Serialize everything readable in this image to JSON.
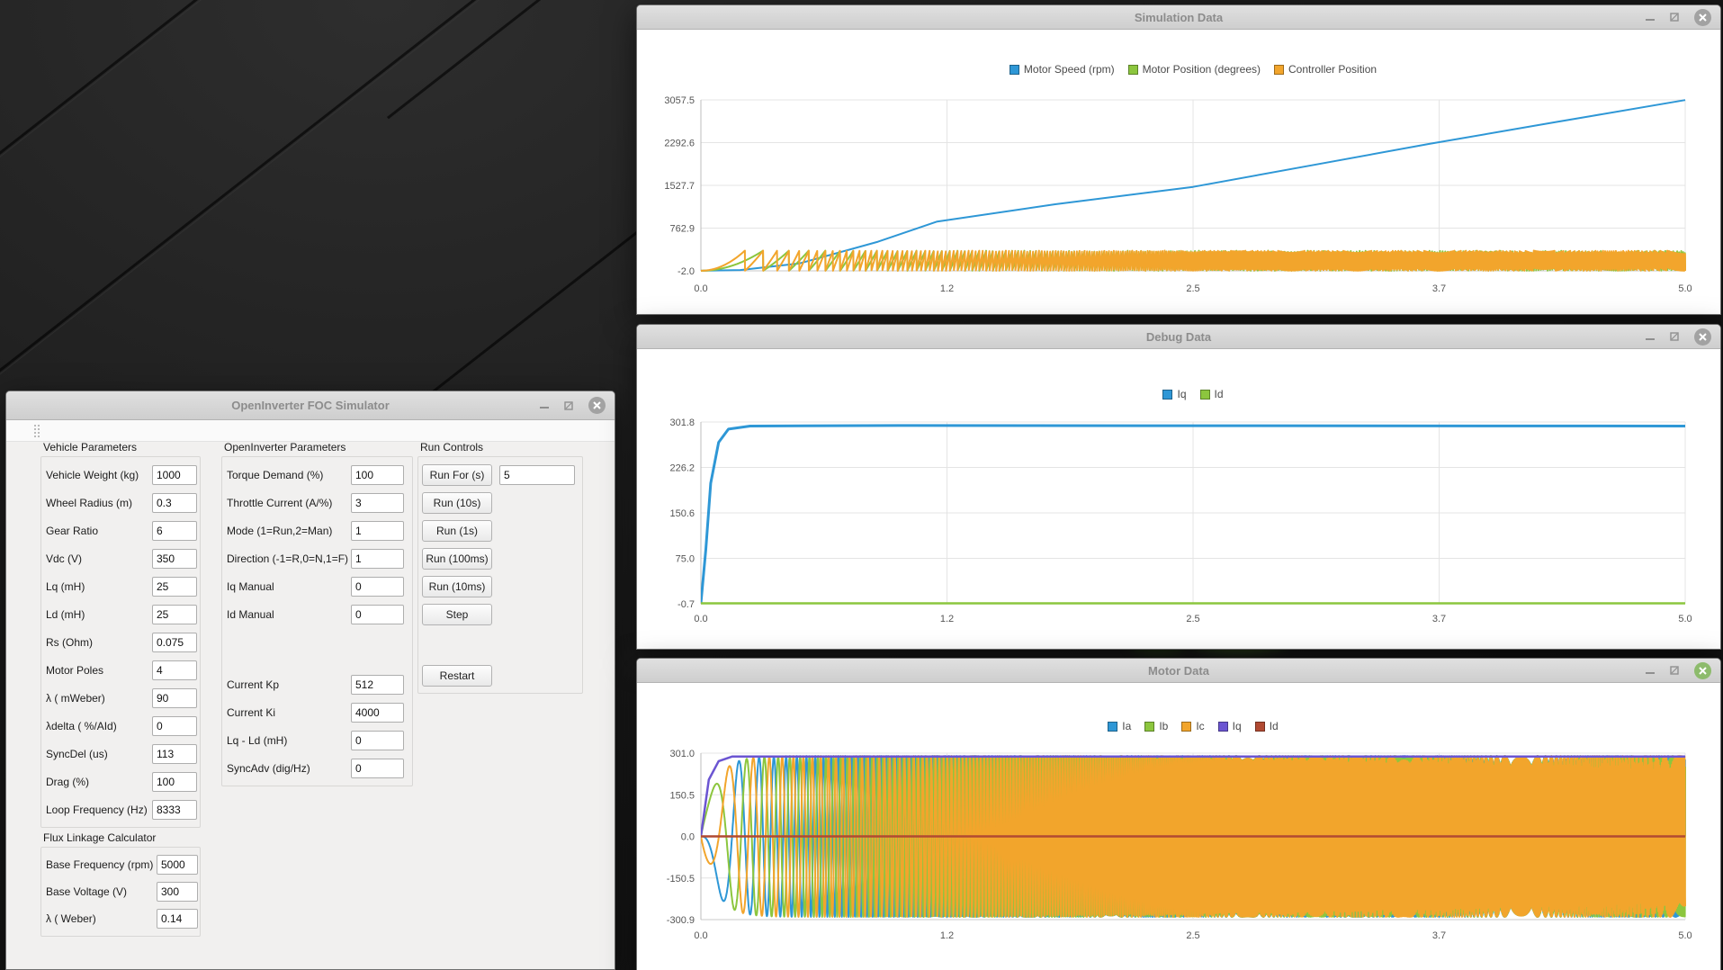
{
  "desktop": {
    "background": "#1d1d1d"
  },
  "simulator": {
    "title": "OpenInverter FOC Simulator",
    "vehicle": {
      "header": "Vehicle Parameters",
      "fields": [
        {
          "label": "Vehicle Weight (kg)",
          "value": "1000"
        },
        {
          "label": "Wheel Radius (m)",
          "value": "0.3"
        },
        {
          "label": "Gear Ratio",
          "value": "6"
        },
        {
          "label": "Vdc (V)",
          "value": "350"
        },
        {
          "label": "Lq (mH)",
          "value": "25"
        },
        {
          "label": "Ld (mH)",
          "value": "25"
        },
        {
          "label": "Rs (Ohm)",
          "value": "0.075"
        },
        {
          "label": "Motor Poles",
          "value": "4"
        },
        {
          "label": "λ ( mWeber)",
          "value": "90"
        },
        {
          "label": "λdelta ( %/AId)",
          "value": "0"
        },
        {
          "label": "SyncDel (us)",
          "value": "113"
        },
        {
          "label": "Drag (%)",
          "value": "100"
        },
        {
          "label": "Loop Frequency (Hz)",
          "value": "8333"
        }
      ],
      "subheader": "Flux Linkage Calculator",
      "flux_fields": [
        {
          "label": "Base Frequency (rpm)",
          "value": "5000"
        },
        {
          "label": "Base Voltage (V)",
          "value": "300"
        },
        {
          "label": "λ ( Weber)",
          "value": "0.14"
        }
      ]
    },
    "openinverter": {
      "header": "OpenInverter Parameters",
      "fields": [
        {
          "label": "Torque Demand (%)",
          "value": "100"
        },
        {
          "label": "Throttle Current (A/%)",
          "value": "3"
        },
        {
          "label": "Mode (1=Run,2=Man)",
          "value": "1"
        },
        {
          "label": "Direction (-1=R,0=N,1=F)",
          "value": "1"
        },
        {
          "label": "Iq Manual",
          "value": "0"
        },
        {
          "label": "Id Manual",
          "value": "0"
        }
      ],
      "fields2": [
        {
          "label": "Current Kp",
          "value": "512"
        },
        {
          "label": "Current Ki",
          "value": "4000"
        },
        {
          "label": "Lq - Ld (mH)",
          "value": "0"
        },
        {
          "label": "SyncAdv (dig/Hz)",
          "value": "0"
        }
      ]
    },
    "run_controls": {
      "header": "Run Controls",
      "run_for_label": "Run For (s)",
      "run_for_value": "5",
      "buttons": [
        "Run (10s)",
        "Run (1s)",
        "Run (100ms)",
        "Run (10ms)",
        "Step"
      ],
      "restart_label": "Restart"
    }
  },
  "chart_data": [
    {
      "window_title": "Simulation Data",
      "type": "line",
      "x_range": [
        0.0,
        5.0
      ],
      "x_ticks": [
        "0.0",
        "1.2",
        "2.5",
        "3.7",
        "5.0"
      ],
      "y_range": [
        -2.0,
        3057.5
      ],
      "y_ticks": [
        "3057.5",
        "2292.6",
        "1527.7",
        "762.9",
        "-2.0"
      ],
      "grid": true,
      "legend_position": "top-center",
      "legend": [
        {
          "label": "Motor Speed (rpm)",
          "color": "#2e97d6"
        },
        {
          "label": "Motor Position (degrees)",
          "color": "#8cc63e"
        },
        {
          "label": "Controller Position",
          "color": "#f2a52c"
        }
      ],
      "series": [
        {
          "name": "Motor Speed (rpm)",
          "color": "#2e97d6",
          "kind": "points",
          "width": 2,
          "points": [
            [
              0,
              0
            ],
            [
              0.2,
              12
            ],
            [
              0.5,
              130
            ],
            [
              0.9,
              520
            ],
            [
              1.2,
              880
            ],
            [
              1.8,
              1190
            ],
            [
              2.5,
              1500
            ],
            [
              3.1,
              1885
            ],
            [
              3.7,
              2270
            ],
            [
              4.35,
              2665
            ],
            [
              5.0,
              3055
            ]
          ]
        },
        {
          "name": "Motor Position (degrees)",
          "color": "#8cc63e",
          "kind": "sawtooth",
          "width": 2,
          "amplitude": 360,
          "cycles_scale": 10,
          "samples": 4200
        },
        {
          "name": "Controller Position",
          "color": "#f2a52c",
          "kind": "sawtooth",
          "width": 2,
          "amplitude": 360,
          "cycles_scale": 20,
          "samples": 6000
        }
      ]
    },
    {
      "window_title": "Debug Data",
      "type": "line",
      "x_range": [
        0.0,
        5.0
      ],
      "x_ticks": [
        "0.0",
        "1.2",
        "2.5",
        "3.7",
        "5.0"
      ],
      "y_range": [
        -0.7,
        301.8
      ],
      "y_ticks": [
        "301.8",
        "226.2",
        "150.6",
        "75.0",
        "-0.7"
      ],
      "grid": true,
      "legend_position": "top-center",
      "legend": [
        {
          "label": "Iq",
          "color": "#2e97d6"
        },
        {
          "label": "Id",
          "color": "#8cc63e"
        }
      ],
      "series": [
        {
          "name": "Iq",
          "color": "#2e97d6",
          "kind": "points",
          "width": 3,
          "points": [
            [
              0,
              0
            ],
            [
              0.025,
              90
            ],
            [
              0.05,
              200
            ],
            [
              0.09,
              268
            ],
            [
              0.14,
              290
            ],
            [
              0.25,
              295
            ],
            [
              1.0,
              296
            ],
            [
              5.0,
              295
            ]
          ]
        },
        {
          "name": "Id",
          "color": "#8cc63e",
          "kind": "points",
          "width": 2.5,
          "points": [
            [
              0,
              0
            ],
            [
              5,
              0
            ]
          ]
        }
      ]
    },
    {
      "window_title": "Motor Data",
      "type": "line",
      "x_range": [
        0.0,
        5.0
      ],
      "x_ticks": [
        "0.0",
        "1.2",
        "2.5",
        "3.7",
        "5.0"
      ],
      "y_range": [
        -300.9,
        301.0
      ],
      "y_ticks": [
        "301.0",
        "150.5",
        "0.0",
        "-150.5",
        "-300.9"
      ],
      "grid": true,
      "legend_position": "top-center",
      "legend": [
        {
          "label": "Ia",
          "color": "#2e97d6"
        },
        {
          "label": "Ib",
          "color": "#8cc63e"
        },
        {
          "label": "Ic",
          "color": "#f2a52c"
        },
        {
          "label": "Iq",
          "color": "#6b55d2"
        },
        {
          "label": "Id",
          "color": "#b14a32"
        }
      ],
      "series": [
        {
          "name": "Ia",
          "color": "#2e97d6",
          "kind": "sine",
          "width": 2,
          "peak": 291,
          "tau": 0.07,
          "cycles_scale": 20,
          "phase_deg": 180,
          "samples": 5000
        },
        {
          "name": "Ib",
          "color": "#8cc63e",
          "kind": "sine",
          "width": 2,
          "peak": 291,
          "tau": 0.07,
          "cycles_scale": 20,
          "phase_deg": 60,
          "samples": 5000
        },
        {
          "name": "Ic",
          "color": "#f2a52c",
          "kind": "sine",
          "width": 2,
          "peak": 291,
          "tau": 0.07,
          "cycles_scale": 20,
          "phase_deg": 300,
          "samples": 5000
        },
        {
          "name": "Iq",
          "color": "#6b55d2",
          "kind": "points",
          "width": 2.5,
          "points": [
            [
              0,
              0
            ],
            [
              0.04,
              205
            ],
            [
              0.09,
              272
            ],
            [
              0.16,
              289
            ],
            [
              5,
              289
            ]
          ]
        },
        {
          "name": "Id",
          "color": "#b14a32",
          "kind": "points",
          "width": 2.5,
          "points": [
            [
              0,
              0
            ],
            [
              5,
              0
            ]
          ]
        }
      ]
    }
  ]
}
